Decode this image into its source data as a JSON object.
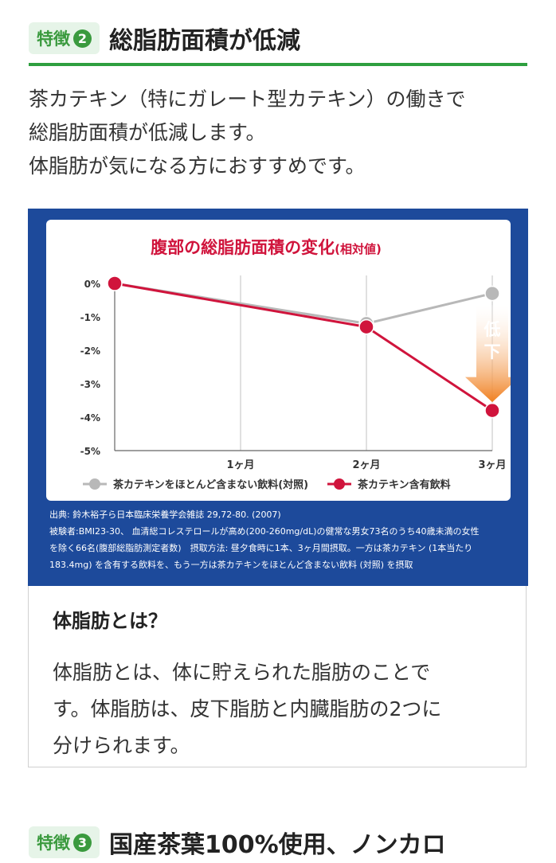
{
  "feature2": {
    "badge_label": "特徴",
    "badge_number": "2",
    "title": "総脂肪面積が低減"
  },
  "lead_lines": [
    "茶カテキン（特にガレート型カテキン）の働きで",
    "総脂肪面積が低減します。",
    "体脂肪が気になる方におすすめです。"
  ],
  "chart_data": {
    "type": "line",
    "title": "腹部の総脂肪面積の変化",
    "title_suffix": "(相対値)",
    "x": [
      0,
      1,
      2,
      3
    ],
    "x_tick_labels": [
      "1ヶ月",
      "2ヶ月",
      "3ヶ月"
    ],
    "ylim": [
      -5,
      0
    ],
    "y_ticks": [
      0,
      -1,
      -2,
      -3,
      -4,
      -5
    ],
    "y_tick_labels": [
      "0%",
      "-1%",
      "-2%",
      "-3%",
      "-4%",
      "-5%"
    ],
    "series": [
      {
        "name": "茶カテキンをほとんど含まない飲料(対照)",
        "x": [
          0,
          2,
          3
        ],
        "values": [
          0,
          -1.2,
          -0.3
        ],
        "color": "#b8b8b8"
      },
      {
        "name": "茶カテキン含有飲料",
        "x": [
          0,
          2,
          3
        ],
        "values": [
          0,
          -1.3,
          -3.8
        ],
        "color": "#d0143c"
      }
    ],
    "annotation": {
      "chars": [
        "低",
        "下"
      ],
      "color": "#f08020"
    },
    "grid_vertical": true,
    "legend": "bottom"
  },
  "source_lines": [
    "出典: 鈴木裕子ら日本臨床栄養学会雑誌 29,72-80. (2007)",
    "被験者:BMI23-30、 血清総コレステロールが高め(200-260mg/dL)の健常な男女73名のうち40歳未満の女性",
    "を除く66名(腹部総脂肪測定者数)　摂取方法: 昼夕食時に1本、3ヶ月間摂取。一方は茶カテキン (1本当たり",
    "183.4mg) を含有する飲料を、もう一方は茶カテキンをほとんど含まない飲料 (対照) を摂取"
  ],
  "info": {
    "title": "体脂肪とは？",
    "lines": [
      "体脂肪とは、体に貯えられた脂肪のことで",
      "す。体脂肪は、皮下脂肪と内臓脂肪の2つに",
      "分けられます。"
    ]
  },
  "feature3": {
    "badge_label": "特徴",
    "badge_number": "3",
    "title": "国産茶葉100%使用、ノンカロ"
  }
}
